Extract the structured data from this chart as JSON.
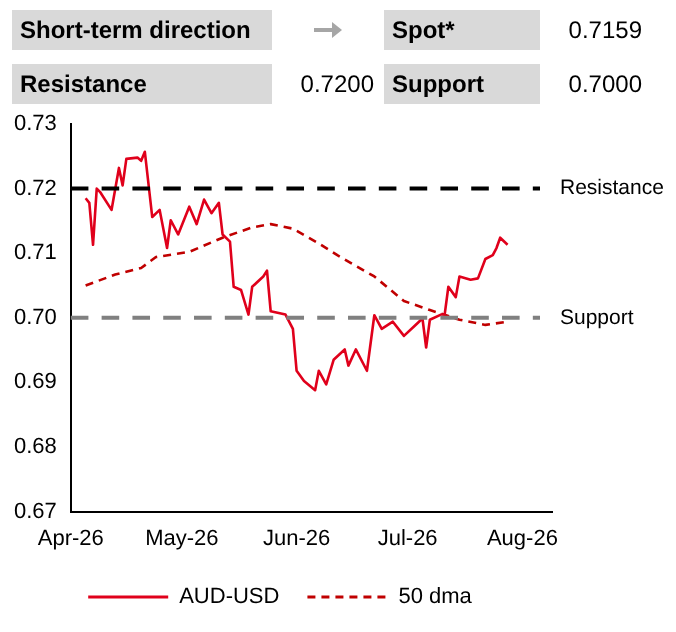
{
  "chart_data": {
    "type": "line",
    "annotations": [
      "Short-term direction",
      "Spot*",
      "0.7159",
      "Resistance",
      "0.7200",
      "Support",
      "0.7000"
    ],
    "series": [
      {
        "name": "AUD-USD",
        "color": "#e0001b",
        "line_style": "solid",
        "x": [
          "2026-04-05",
          "2026-04-06",
          "2026-04-07",
          "2026-04-08",
          "2026-04-09",
          "2026-04-12",
          "2026-04-14",
          "2026-04-15",
          "2026-04-16",
          "2026-04-19",
          "2026-04-20",
          "2026-04-21",
          "2026-04-23",
          "2026-04-25",
          "2026-04-27",
          "2026-04-28",
          "2026-04-30",
          "2026-05-03",
          "2026-05-05",
          "2026-05-07",
          "2026-05-09",
          "2026-05-11",
          "2026-05-12",
          "2026-05-14",
          "2026-05-15",
          "2026-05-17",
          "2026-05-19",
          "2026-05-20",
          "2026-05-23",
          "2026-05-24",
          "2026-05-25",
          "2026-05-29",
          "2026-05-31",
          "2026-06-01",
          "2026-06-03",
          "2026-06-06",
          "2026-06-07",
          "2026-06-09",
          "2026-06-11",
          "2026-06-14",
          "2026-06-15",
          "2026-06-17",
          "2026-06-20",
          "2026-06-22",
          "2026-06-24",
          "2026-06-27",
          "2026-06-30",
          "2026-07-03",
          "2026-07-05",
          "2026-07-06",
          "2026-07-07",
          "2026-07-10",
          "2026-07-11",
          "2026-07-12",
          "2026-07-14",
          "2026-07-15",
          "2026-07-18",
          "2026-07-20",
          "2026-07-22",
          "2026-07-24",
          "2026-07-25",
          "2026-07-26",
          "2026-07-28"
        ],
        "values": [
          0.7185,
          0.7178,
          0.7113,
          0.72,
          0.7194,
          0.7167,
          0.7232,
          0.7205,
          0.7246,
          0.7248,
          0.7243,
          0.7257,
          0.7156,
          0.7167,
          0.7108,
          0.7151,
          0.7129,
          0.7172,
          0.7145,
          0.7183,
          0.7162,
          0.7178,
          0.7129,
          0.7118,
          0.7048,
          0.7043,
          0.7005,
          0.7048,
          0.7064,
          0.7073,
          0.701,
          0.7005,
          0.6983,
          0.6918,
          0.6902,
          0.6888,
          0.6918,
          0.6897,
          0.6935,
          0.6951,
          0.6926,
          0.6951,
          0.6918,
          0.7004,
          0.6983,
          0.6994,
          0.6972,
          0.6988,
          0.6999,
          0.6954,
          0.6997,
          0.7005,
          0.7005,
          0.7048,
          0.7032,
          0.7064,
          0.7059,
          0.7061,
          0.7091,
          0.7097,
          0.7108,
          0.7124,
          0.7113
        ]
      },
      {
        "name": "50 dma",
        "color": "#c00000",
        "line_style": "dashed",
        "x": [
          "2026-04-05",
          "2026-04-13",
          "2026-04-20",
          "2026-04-24",
          "2026-05-03",
          "2026-05-12",
          "2026-05-20",
          "2026-05-25",
          "2026-05-31",
          "2026-06-07",
          "2026-06-12",
          "2026-06-22",
          "2026-06-30",
          "2026-07-07",
          "2026-07-15",
          "2026-07-22",
          "2026-07-28"
        ],
        "values": [
          0.705,
          0.7067,
          0.7077,
          0.7094,
          0.7102,
          0.7124,
          0.714,
          0.7145,
          0.7138,
          0.7115,
          0.7097,
          0.7064,
          0.7026,
          0.7012,
          0.6997,
          0.6989,
          0.6994
        ]
      }
    ],
    "xlim": [
      "2026-04-01",
      "2026-08-09"
    ],
    "xticks": [
      {
        "value": "2026-04-01",
        "label": "Apr-26"
      },
      {
        "value": "2026-05-01",
        "label": "May-26"
      },
      {
        "value": "2026-06-01",
        "label": "Jun-26"
      },
      {
        "value": "2026-07-01",
        "label": "Jul-26"
      },
      {
        "value": "2026-08-01",
        "label": "Aug-26"
      }
    ],
    "ylim": [
      0.67,
      0.73
    ],
    "yticks": [
      0.67,
      0.68,
      0.69,
      {
        "value": 0.7,
        "label": "0.70"
      },
      0.71,
      0.72,
      0.73
    ],
    "ref_lines": [
      {
        "axis": "y",
        "value": 0.72,
        "label": "Resistance",
        "color": "#000000",
        "line_style": "dashed"
      },
      {
        "axis": "y",
        "value": 0.7,
        "label": "Support",
        "color": "#808080",
        "line_style": "dashed"
      }
    ],
    "grid": false,
    "legend": "bottom",
    "marker": "none"
  }
}
